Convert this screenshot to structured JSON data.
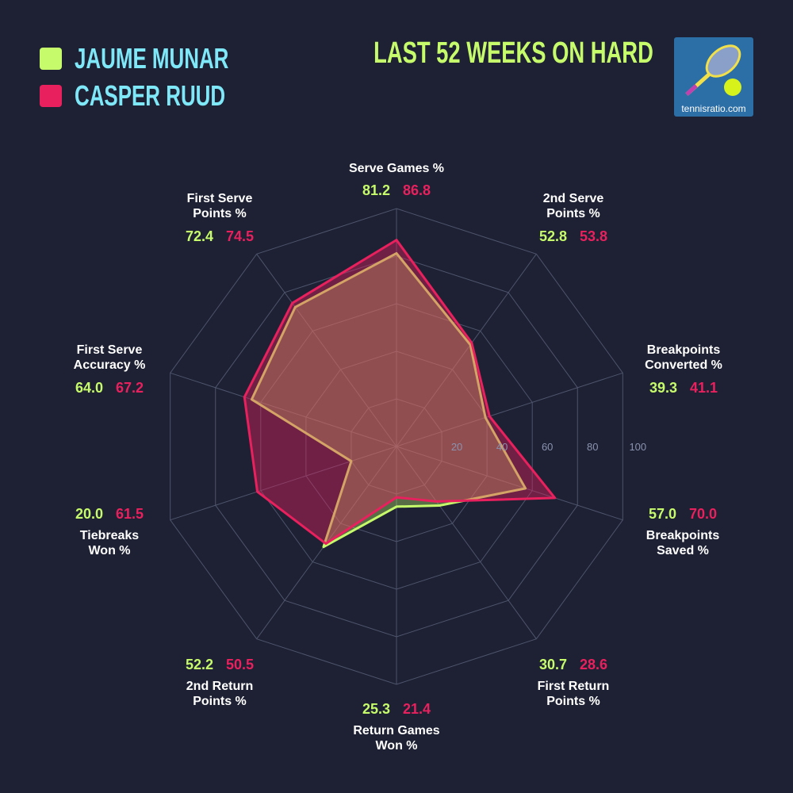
{
  "title": "LAST 52 WEEKS ON HARD",
  "logo": {
    "text": "tennisratio.com"
  },
  "colors": {
    "background": "#1e2133",
    "player1": "#c6fb6b",
    "player2": "#e8215e",
    "names": "#7fe8f8",
    "grid": "#5a6078"
  },
  "chart_data": {
    "type": "radar",
    "title": "LAST 52 WEEKS ON HARD",
    "categories": [
      "Serve Games %",
      "2nd Serve Points %",
      "Breakpoints Converted %",
      "Breakpoints Saved %",
      "First Return Points %",
      "Return Games Won %",
      "2nd Return Points %",
      "Tiebreaks Won %",
      "First Serve Accuracy %",
      "First Serve Points %"
    ],
    "category_lines": [
      [
        "Serve Games %"
      ],
      [
        "2nd Serve",
        "Points %"
      ],
      [
        "Breakpoints",
        "Converted %"
      ],
      [
        "Breakpoints",
        "Saved %"
      ],
      [
        "First Return",
        "Points %"
      ],
      [
        "Return Games",
        "Won %"
      ],
      [
        "2nd Return",
        "Points %"
      ],
      [
        "Tiebreaks",
        "Won %"
      ],
      [
        "First Serve",
        "Accuracy %"
      ],
      [
        "First Serve",
        "Points %"
      ]
    ],
    "series": [
      {
        "name": "JAUME MUNAR",
        "color": "#c6fb6b",
        "values": [
          81.2,
          52.8,
          39.3,
          57.0,
          30.7,
          25.3,
          52.2,
          20.0,
          64.0,
          72.4
        ],
        "labels": [
          "81.2",
          "52.8",
          "39.3",
          "57.0",
          "30.7",
          "25.3",
          "52.2",
          "20.0",
          "64.0",
          "72.4"
        ]
      },
      {
        "name": "CASPER RUUD",
        "color": "#e8215e",
        "values": [
          86.8,
          53.8,
          41.1,
          70.0,
          28.6,
          21.4,
          50.5,
          61.5,
          67.2,
          74.5
        ],
        "labels": [
          "86.8",
          "53.8",
          "41.1",
          "70.0",
          "28.6",
          "21.4",
          "50.5",
          "61.5",
          "67.2",
          "74.5"
        ]
      }
    ],
    "rlim": [
      0,
      100
    ],
    "ticks": [
      "20",
      "40",
      "60",
      "80",
      "100"
    ],
    "legend": "top-left"
  }
}
